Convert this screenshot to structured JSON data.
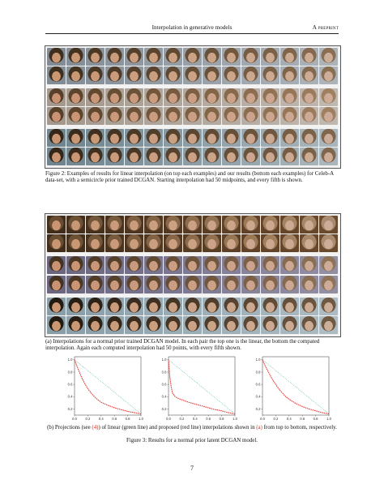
{
  "header": {
    "title": "Interpolation in generative models",
    "label": "A preprint"
  },
  "figure2": {
    "caption": "Figure 2: Examples of results for linear interpolation (on top each examples) and our results (bottom each examples) for Celeb-A data-set, with a semicircle prior trained DCGAN. Starting interpolation had 50 midpoints, and every fifth is shown."
  },
  "figure3": {
    "subcaption_a": "(a) Interpolations for a normal prior trained DCGAN model. In each pair the top one is the linear, the bottom the compated interpolation. Again each computed interpolation had 50 points, with every fifth shown.",
    "subcaption_b_prefix": "(b) Projections (see ",
    "subcaption_b_ref1": "(4)",
    "subcaption_b_mid": ") of linear (green line) and proposed (red line) interpolations shown in ",
    "subcaption_b_ref2": "(a)",
    "subcaption_b_suffix": " from top to bottom, respectively.",
    "caption": "Figure 3: Results for a normal prior latent DCGAN model."
  },
  "chart_data": [
    {
      "type": "line",
      "x_ticks": [
        "0.0",
        "0.2",
        "0.4",
        "0.6",
        "0.8",
        "1.0"
      ],
      "y_ticks": [
        "0.2",
        "0.4",
        "0.6",
        "0.8",
        "1.0"
      ],
      "xlim": [
        0,
        1
      ],
      "ylim": [
        0.1,
        1.05
      ],
      "series": [
        {
          "color": "#3cb371",
          "style": "dotted",
          "x": [
            0,
            1
          ],
          "y": [
            1.0,
            0.12
          ]
        },
        {
          "color": "#e53935",
          "style": "dashed",
          "x": [
            0,
            0.05,
            0.1,
            0.15,
            0.2,
            0.25,
            0.3,
            0.35,
            0.4,
            0.5,
            0.6,
            0.7,
            0.8,
            0.9,
            1.0
          ],
          "y": [
            1.0,
            0.86,
            0.73,
            0.62,
            0.53,
            0.46,
            0.4,
            0.35,
            0.31,
            0.26,
            0.22,
            0.19,
            0.16,
            0.14,
            0.12
          ]
        }
      ]
    },
    {
      "type": "line",
      "x_ticks": [
        "0.0",
        "0.2",
        "0.4",
        "0.6",
        "0.8",
        "1.0"
      ],
      "y_ticks": [
        "0.2",
        "0.4",
        "0.6",
        "0.8",
        "1.0"
      ],
      "xlim": [
        0,
        1
      ],
      "ylim": [
        0.1,
        1.05
      ],
      "series": [
        {
          "color": "#3cb371",
          "style": "dotted",
          "x": [
            0,
            1
          ],
          "y": [
            1.0,
            0.12
          ]
        },
        {
          "color": "#e53935",
          "style": "dashed",
          "x": [
            0,
            0.02,
            0.04,
            0.06,
            0.1,
            0.15,
            0.2,
            0.3,
            0.4,
            0.5,
            0.6,
            0.7,
            0.8,
            0.9,
            1.0
          ],
          "y": [
            1.0,
            0.72,
            0.56,
            0.46,
            0.4,
            0.37,
            0.35,
            0.31,
            0.28,
            0.25,
            0.22,
            0.19,
            0.17,
            0.14,
            0.12
          ]
        }
      ]
    },
    {
      "type": "line",
      "x_ticks": [
        "0.0",
        "0.2",
        "0.4",
        "0.6",
        "0.8",
        "1.0"
      ],
      "y_ticks": [
        "0.2",
        "0.4",
        "0.6",
        "0.8",
        "1.0"
      ],
      "xlim": [
        0,
        1
      ],
      "ylim": [
        0.1,
        1.05
      ],
      "series": [
        {
          "color": "#3cb371",
          "style": "dotted",
          "x": [
            0,
            1
          ],
          "y": [
            1.0,
            0.12
          ]
        },
        {
          "color": "#e53935",
          "style": "dashed",
          "x": [
            0,
            0.05,
            0.1,
            0.15,
            0.2,
            0.25,
            0.3,
            0.35,
            0.4,
            0.5,
            0.6,
            0.7,
            0.8,
            0.9,
            1.0
          ],
          "y": [
            1.0,
            0.88,
            0.78,
            0.68,
            0.6,
            0.52,
            0.46,
            0.4,
            0.36,
            0.29,
            0.24,
            0.2,
            0.17,
            0.14,
            0.12
          ]
        }
      ]
    }
  ],
  "page": {
    "number": "7"
  }
}
